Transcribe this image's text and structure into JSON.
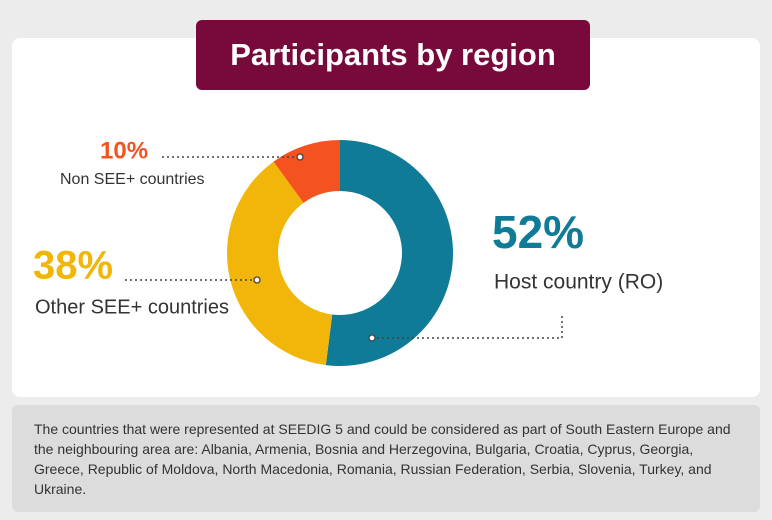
{
  "chart_data": {
    "type": "donut",
    "title": "Participants by region",
    "categories": [
      "Host country (RO)",
      "Other SEE+ countries",
      "Non SEE+ countries"
    ],
    "values": [
      52,
      38,
      10
    ],
    "value_labels": [
      "52%",
      "38%",
      "10%"
    ],
    "colors": [
      "#0f7b97",
      "#f2b50a",
      "#f4531f"
    ],
    "note": "The countries that were represented at SEEDIG 5 and could be considered as part of South Eastern Europe and the neighbouring area are: Albania, Armenia, Bosnia and Herzegovina, Bulgaria, Croatia, Cyprus, Georgia, Greece, Republic of Moldova, North Macedonia, Romania, Russian Federation, Serbia, Slovenia, Turkey, and Ukraine."
  }
}
